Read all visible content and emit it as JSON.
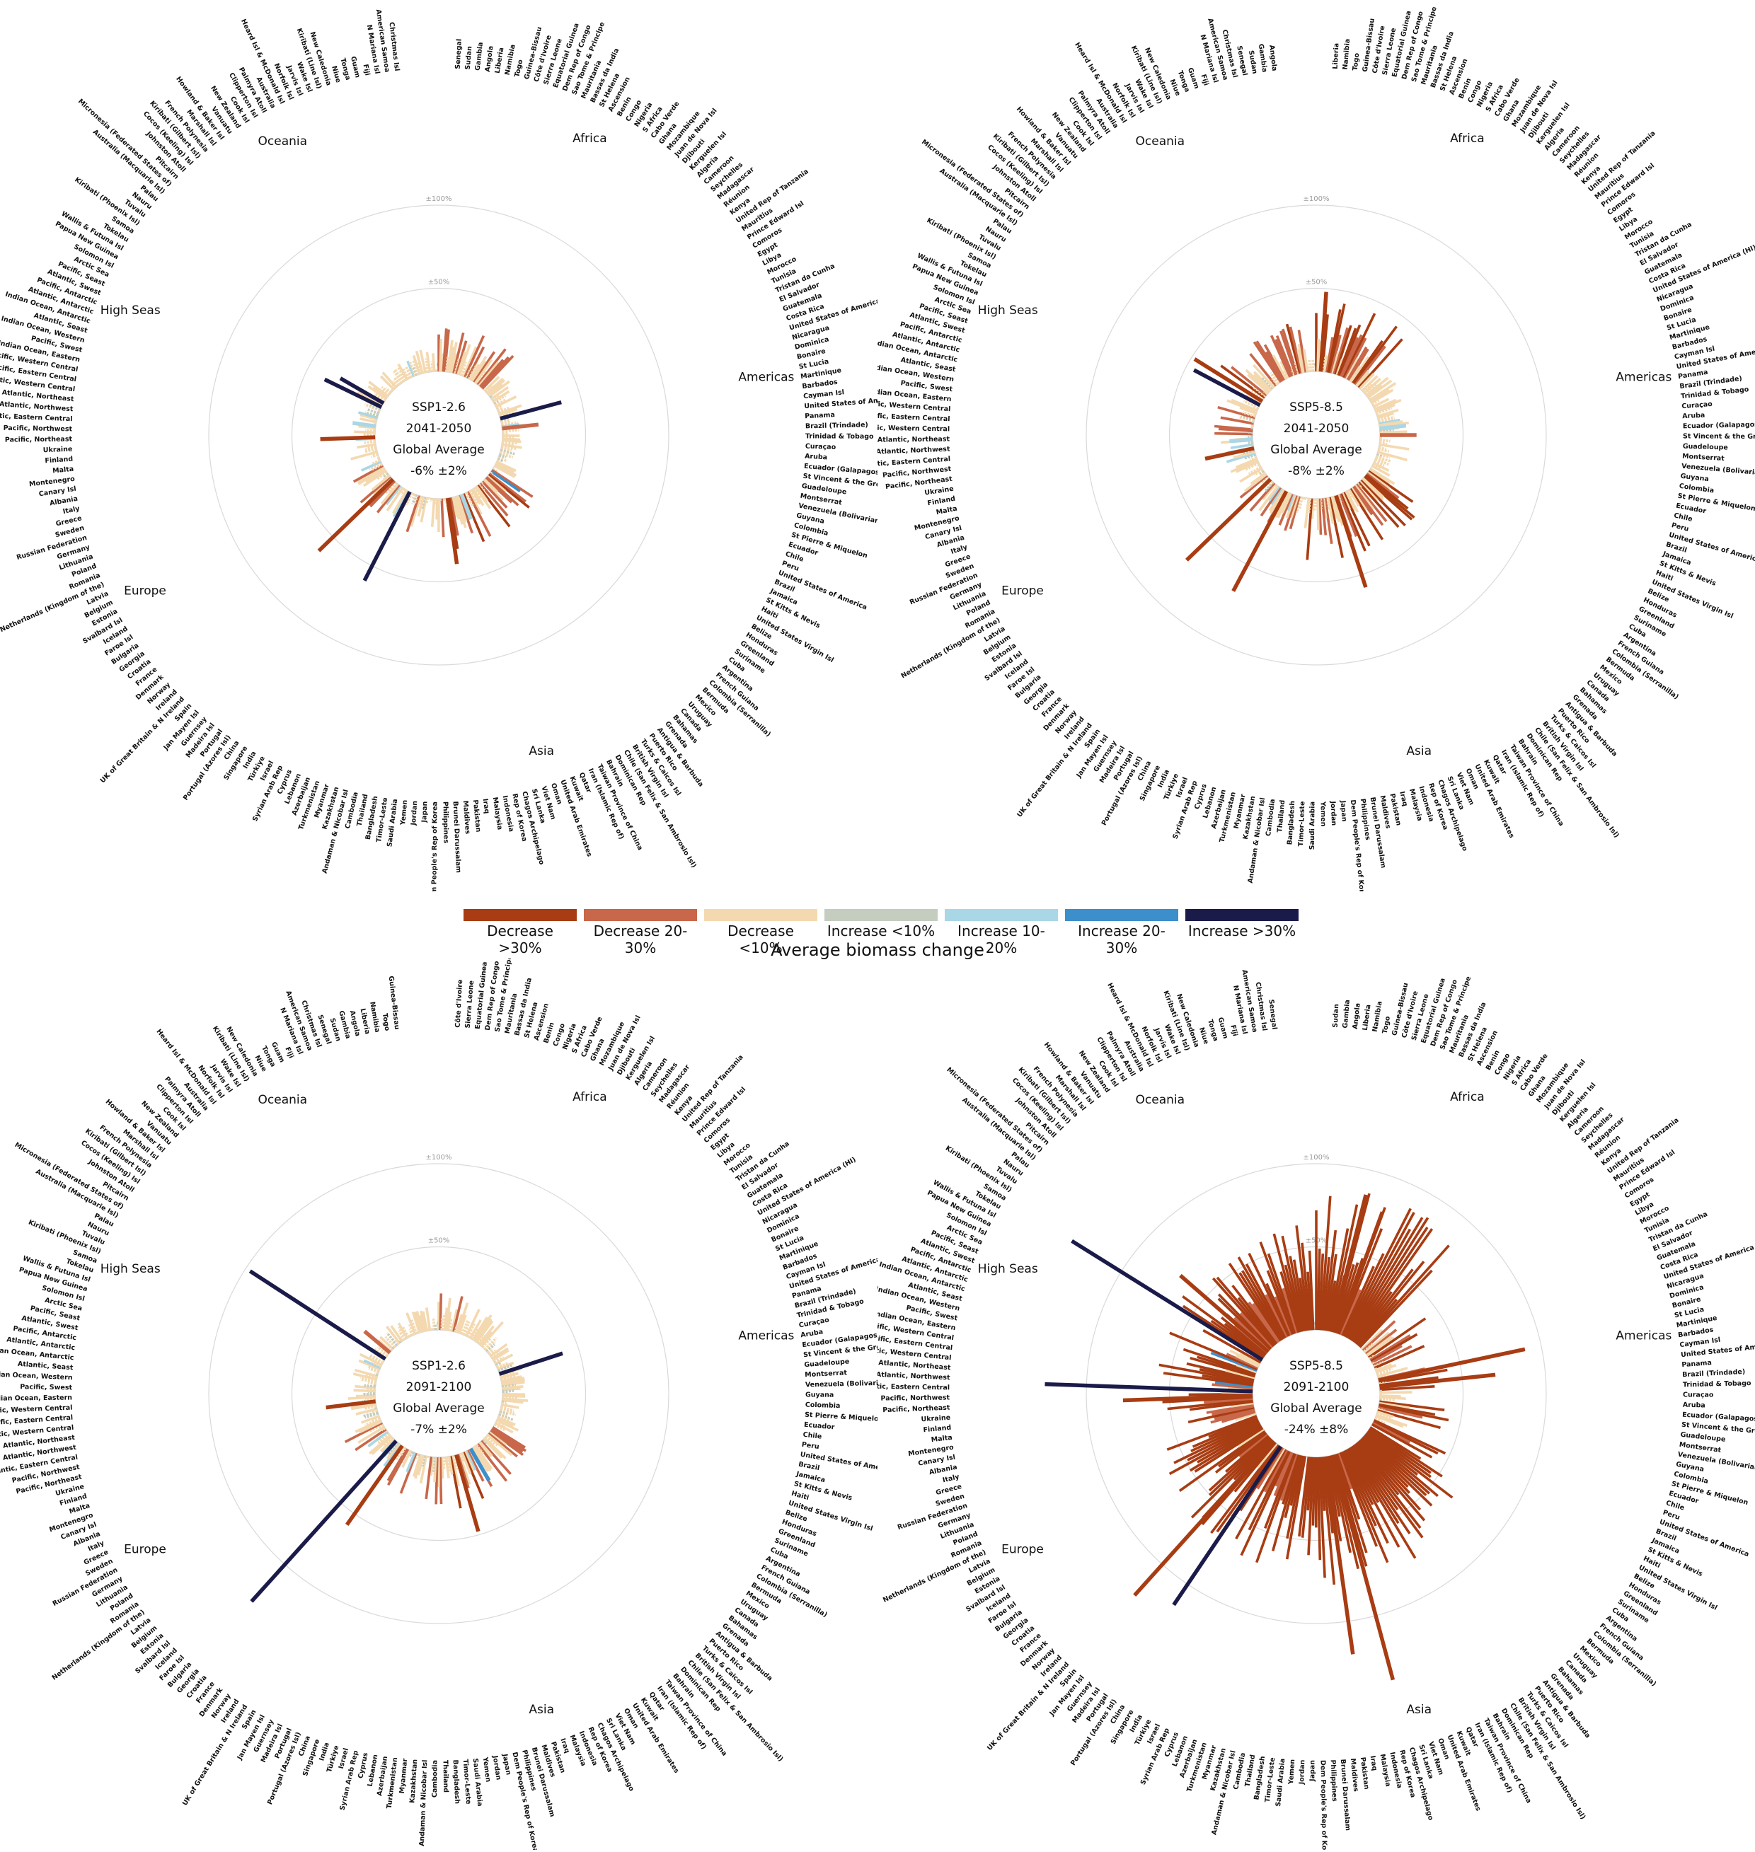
{
  "colors": {
    "dec_gt30": "#a83c12",
    "dec_20_30": "#c8674a",
    "dec_lt10": "#f4d9b0",
    "inc_lt10": "#c4cdbf",
    "inc_10_20": "#a9d7e6",
    "inc_20_30": "#3d8fcb",
    "inc_gt30": "#1b1b4a",
    "ring": "#d9d9d9"
  },
  "legend": {
    "title": "Average biomass change",
    "items": [
      {
        "label": "Decrease >30%",
        "color": "#a83c12"
      },
      {
        "label": "Decrease 20-30%",
        "color": "#c8674a"
      },
      {
        "label": "Decrease <10%",
        "color": "#f4d9b0"
      },
      {
        "label": "Increase <10%",
        "color": "#c4cdbf"
      },
      {
        "label": "Increase 10-20%",
        "color": "#a9d7e6"
      },
      {
        "label": "Increase 20-30%",
        "color": "#3d8fcb"
      },
      {
        "label": "Increase >30%",
        "color": "#1b1b4a"
      }
    ]
  },
  "ring_labels": {
    "r100": "±100%",
    "r50": "±50%",
    "r0": "0"
  },
  "regions": [
    "Africa",
    "Americas",
    "Asia",
    "Europe",
    "High Seas",
    "Oceania"
  ],
  "country_labels": [
    "Senegal",
    "Sudan",
    "Gambia",
    "Angola",
    "Liberia",
    "Namibia",
    "Togo",
    "Guinea-Bissau",
    "Côte d'Ivoire",
    "Sierra Leone",
    "Equatorial Guinea",
    "Dem Rep of Congo",
    "Sao Tome & Principe",
    "Mauritania",
    "Bassas da India",
    "St Helena",
    "Ascension",
    "Benin",
    "Congo",
    "Nigeria",
    "S Africa",
    "Cabo Verde",
    "Ghana",
    "Mozambique",
    "Juan de Nova Isl",
    "Djibouti",
    "Kerguelen Isl",
    "Algeria",
    "Cameroon",
    "Seychelles",
    "Madagascar",
    "Réunion",
    "Kenya",
    "United Rep of Tanzania",
    "Mauritius",
    "Prince Edward Isl",
    "Comoros",
    "Egypt",
    "Libya",
    "Morocco",
    "Tunisia",
    "Tristan da Cunha",
    "El Salvador",
    "Guatemala",
    "Costa Rica",
    "United States of America (HI)",
    "Nicaragua",
    "Dominica",
    "Bonaire",
    "St Lucia",
    "Martinique",
    "Barbados",
    "Cayman Isl",
    "United States of America (AK)",
    "Panama",
    "Brazil (Trindade)",
    "Trinidad & Tobago",
    "Curaçao",
    "Aruba",
    "Ecuador (Galapagos)",
    "St Vincent & the Grenadines",
    "Guadeloupe",
    "Montserrat",
    "Venezuela (Bolivarian Rep of)",
    "Guyana",
    "Colombia",
    "St Pierre & Miquelon",
    "Ecuador",
    "Chile",
    "Peru",
    "United States of America",
    "Brazil",
    "Jamaica",
    "St Kitts & Nevis",
    "Haiti",
    "United States Virgin Isl",
    "Belize",
    "Honduras",
    "Greenland",
    "Suriname",
    "Cuba",
    "Argentina",
    "French Guiana",
    "Colombia (Serranilla)",
    "Bermuda",
    "Mexico",
    "Uruguay",
    "Canada",
    "Bahamas",
    "Grenada",
    "Antigua & Barbuda",
    "Puerto Rico",
    "Turks & Caicos Isl",
    "British Virgin Isl",
    "Chile (San Felix & San Ambrosio Isl)",
    "Dominican Rep",
    "Bahrain",
    "Taiwan Province of China",
    "Iran (Islamic Rep of)",
    "Qatar",
    "Kuwait",
    "United Arab Emirates",
    "Oman",
    "Viet Nam",
    "Sri Lanka",
    "Chagos Archipelago",
    "Rep of Korea",
    "Indonesia",
    "Malaysia",
    "Iraq",
    "Pakistan",
    "Maldives",
    "Brunei Darussalam",
    "Philippines",
    "Dem People's Rep of Korea",
    "Japan",
    "Jordan",
    "Yemen",
    "Saudi Arabia",
    "Timor-Leste",
    "Bangladesh",
    "Thailand",
    "Cambodia",
    "Andaman & Nicobar Isl",
    "Kazakhstan",
    "Myanmar",
    "Turkmenistan",
    "Azerbaijan",
    "Lebanon",
    "Cyprus",
    "Syrian Arab Rep",
    "Israel",
    "Türkiye",
    "India",
    "Singapore",
    "China",
    "Portugal (Azores Isl)",
    "Portugal",
    "Madeira Isl",
    "Guernsey",
    "Jan Mayen Isl",
    "Spain",
    "UK of Great Britain & N Ireland",
    "Ireland",
    "Norway",
    "Denmark",
    "France",
    "Croatia",
    "Georgia",
    "Bulgaria",
    "Faroe Isl",
    "Iceland",
    "Svalbard Isl",
    "Estonia",
    "Belgium",
    "Latvia",
    "Netherlands (Kingdom of the)",
    "Romania",
    "Poland",
    "Lithuania",
    "Germany",
    "Russian Federation",
    "Sweden",
    "Greece",
    "Italy",
    "Albania",
    "Canary Isl",
    "Montenegro",
    "Malta",
    "Finland",
    "Ukraine",
    "Pacific, Northeast",
    "Pacific, Northwest",
    "Atlantic, Eastern Central",
    "Atlantic, Northwest",
    "Atlantic, Northeast",
    "Atlantic, Western Central",
    "Pacific, Eastern Central",
    "Pacific, Western Central",
    "Indian Ocean, Eastern",
    "Pacific, Swest",
    "Indian Ocean, Western",
    "Atlantic, Seast",
    "Indian Ocean, Antarctic",
    "Atlantic, Antarctic",
    "Pacific, Antarctic",
    "Atlantic, Swest",
    "Pacific, Seast",
    "Arctic Sea",
    "Solomon Isl",
    "Papua New Guinea",
    "Wallis & Futuna Isl",
    "Tokelau",
    "Samoa",
    "Kiribati (Phoenix Isl)",
    "Tuvalu",
    "Nauru",
    "Palau",
    "Australia (Macquarie Isl)",
    "Micronesia (Federated States of)",
    "Pitcairn",
    "Johnston Atoll",
    "Cocos (Keeling) Isl",
    "Kiribati (Gilbert Isl)",
    "French Polynesia",
    "Marshall Isl",
    "Howland & Baker Isl",
    "Vanuatu",
    "New Zealand",
    "Cook Isl",
    "Clipperton Isl",
    "Palmyra Atoll",
    "Australia",
    "Heard Isl & McDonald Isl",
    "Norfolk Isl",
    "Jarvis Isl",
    "Wake Isl",
    "Kiribati (Line Isl)",
    "New Caledonia",
    "Niue",
    "Tonga",
    "Guam",
    "Fiji",
    "N Mariana Isl",
    "American Samoa",
    "Christmas Isl"
  ],
  "panels": [
    {
      "scenario": "SSP1-2.6",
      "period": "2041-2050",
      "avg_label": "Global Average",
      "avg": "-6% ±2%",
      "seed": 11,
      "bands": [
        {
          "start": 0,
          "end": 44,
          "base": -16,
          "amp": 12,
          "flip": 0.0
        },
        {
          "start": 46,
          "end": 120,
          "base": -9,
          "amp": 7,
          "flip": 0.14
        },
        {
          "start": 122,
          "end": 188,
          "base": -16,
          "amp": 16,
          "flip": 0.02
        },
        {
          "start": 190,
          "end": 250,
          "base": -13,
          "amp": 13,
          "flip": 0.16
        },
        {
          "start": 252,
          "end": 300,
          "base": -8,
          "amp": 9,
          "flip": 0.22
        },
        {
          "start": 302,
          "end": 358,
          "base": -8,
          "amp": 7,
          "flip": 0.05
        }
      ],
      "spikes": [
        {
          "deg": 75,
          "v": 38
        },
        {
          "deg": 84,
          "v": -22
        },
        {
          "deg": 159,
          "v": 16
        },
        {
          "deg": 172,
          "v": -40
        },
        {
          "deg": 207,
          "v": 60
        },
        {
          "deg": 226,
          "v": -62
        },
        {
          "deg": 268,
          "v": -33
        },
        {
          "deg": 278,
          "v": 14
        },
        {
          "deg": 300,
          "v": 30
        },
        {
          "deg": 296,
          "v": 38
        }
      ]
    },
    {
      "scenario": "SSP5-8.5",
      "period": "2041-2050",
      "avg_label": "Global Average",
      "avg": "-8% ±2%",
      "seed": 29,
      "bands": [
        {
          "start": 0,
          "end": 44,
          "base": -26,
          "amp": 18,
          "flip": 0.0
        },
        {
          "start": 46,
          "end": 120,
          "base": -10,
          "amp": 10,
          "flip": 0.06
        },
        {
          "start": 122,
          "end": 188,
          "base": -21,
          "amp": 18,
          "flip": 0.0
        },
        {
          "start": 190,
          "end": 250,
          "base": -11,
          "amp": 12,
          "flip": 0.12
        },
        {
          "start": 252,
          "end": 300,
          "base": -11,
          "amp": 15,
          "flip": 0.24
        },
        {
          "start": 302,
          "end": 358,
          "base": -17,
          "amp": 16,
          "flip": 0.05
        }
      ],
      "spikes": [
        {
          "deg": 4,
          "v": -48
        },
        {
          "deg": 84,
          "v": 16
        },
        {
          "deg": 90,
          "v": -22
        },
        {
          "deg": 162,
          "v": -58
        },
        {
          "deg": 208,
          "v": -68
        },
        {
          "deg": 226,
          "v": -70
        },
        {
          "deg": 258,
          "v": -30
        },
        {
          "deg": 266,
          "v": 14
        },
        {
          "deg": 298,
          "v": 45
        },
        {
          "deg": 302,
          "v": -48
        }
      ]
    },
    {
      "scenario": "SSP1-2.6",
      "period": "2091-2100",
      "avg_label": "Global Average",
      "avg": "-7% ±2%",
      "seed": 47,
      "bands": [
        {
          "start": 0,
          "end": 44,
          "base": -12,
          "amp": 10,
          "flip": 0.0
        },
        {
          "start": 46,
          "end": 120,
          "base": -9,
          "amp": 7,
          "flip": 0.12
        },
        {
          "start": 122,
          "end": 188,
          "base": -18,
          "amp": 14,
          "flip": 0.05
        },
        {
          "start": 190,
          "end": 250,
          "base": -14,
          "amp": 13,
          "flip": 0.18
        },
        {
          "start": 252,
          "end": 300,
          "base": -9,
          "amp": 8,
          "flip": 0.3
        },
        {
          "start": 302,
          "end": 358,
          "base": -7,
          "amp": 7,
          "flip": 0.08
        }
      ],
      "spikes": [
        {
          "deg": 72,
          "v": 40
        },
        {
          "deg": 80,
          "v": -14
        },
        {
          "deg": 150,
          "v": 22
        },
        {
          "deg": 164,
          "v": -48
        },
        {
          "deg": 222,
          "v": 130
        },
        {
          "deg": 215,
          "v": -58
        },
        {
          "deg": 263,
          "v": -30
        },
        {
          "deg": 303,
          "v": 97
        },
        {
          "deg": 310,
          "v": -20
        }
      ]
    },
    {
      "scenario": "SSP5-8.5",
      "period": "2091-2100",
      "avg_label": "Global Average",
      "avg": "-24% ±8%",
      "seed": 83,
      "bands": [
        {
          "start": 0,
          "end": 44,
          "base": -58,
          "amp": 30,
          "flip": 0.0
        },
        {
          "start": 46,
          "end": 120,
          "base": -22,
          "amp": 26,
          "flip": 0.03
        },
        {
          "start": 122,
          "end": 188,
          "base": -50,
          "amp": 28,
          "flip": 0.0
        },
        {
          "start": 190,
          "end": 250,
          "base": -44,
          "amp": 26,
          "flip": 0.0
        },
        {
          "start": 252,
          "end": 300,
          "base": -34,
          "amp": 24,
          "flip": 0.03
        },
        {
          "start": 302,
          "end": 358,
          "base": -44,
          "amp": 20,
          "flip": 0.0
        }
      ],
      "spikes": [
        {
          "deg": 14,
          "v": -85
        },
        {
          "deg": 20,
          "v": -78
        },
        {
          "deg": 78,
          "v": -90
        },
        {
          "deg": 84,
          "v": -70
        },
        {
          "deg": 165,
          "v": -140
        },
        {
          "deg": 172,
          "v": -120
        },
        {
          "deg": 222,
          "v": -125
        },
        {
          "deg": 214,
          "v": 115
        },
        {
          "deg": 268,
          "v": -78
        },
        {
          "deg": 272,
          "v": 125
        },
        {
          "deg": 302,
          "v": 135
        },
        {
          "deg": 311,
          "v": -70
        }
      ]
    }
  ],
  "chart_data": {
    "type": "bar",
    "layout": "radial",
    "title": "",
    "xlabel": "Average biomass change",
    "ylim": [
      -100,
      100
    ],
    "ring_ticks": [
      "0",
      "±50%",
      "±100%"
    ],
    "categories": [
      "Africa",
      "Americas",
      "Asia",
      "Europe",
      "High Seas",
      "Oceania"
    ],
    "series": [
      {
        "name": "SSP1-2.6 2041-2050",
        "global_average": -6,
        "uncertainty": 2,
        "values": [
          -12,
          -7,
          -15,
          -11,
          -6,
          -7
        ]
      },
      {
        "name": "SSP5-8.5 2041-2050",
        "global_average": -8,
        "uncertainty": 2,
        "values": [
          -20,
          -8,
          -19,
          -9,
          -8,
          -16
        ]
      },
      {
        "name": "SSP1-2.6 2091-2100",
        "global_average": -7,
        "uncertainty": 2,
        "values": [
          -10,
          -7,
          -16,
          -12,
          -6,
          -6
        ]
      },
      {
        "name": "SSP5-8.5 2091-2100",
        "global_average": -24,
        "uncertainty": 8,
        "values": [
          -55,
          -20,
          -48,
          -42,
          -30,
          -42
        ]
      }
    ]
  }
}
